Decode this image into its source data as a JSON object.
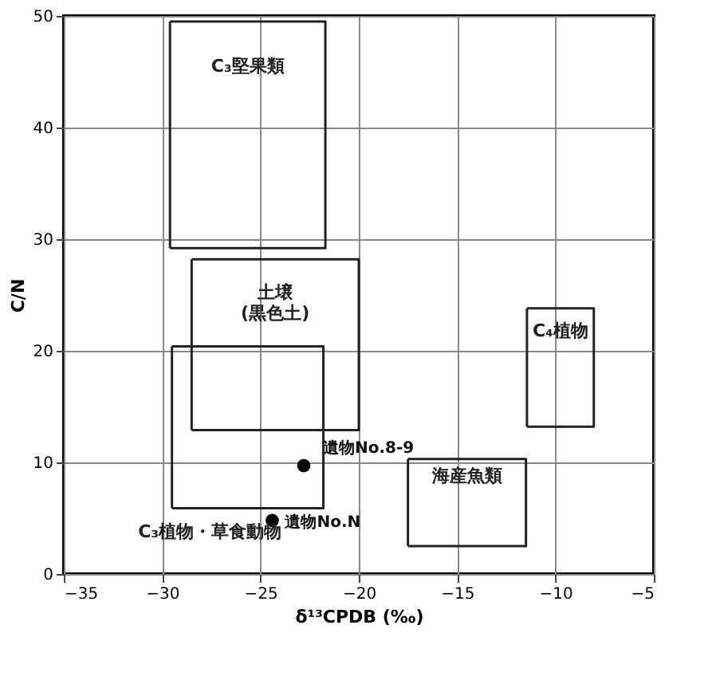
{
  "chart_data": {
    "type": "scatter",
    "xlabel": "δ¹³CPDB (‰)",
    "ylabel": "C/N",
    "xlim": [
      -35,
      -5
    ],
    "xticks": [
      -35,
      -30,
      -25,
      -20,
      -15,
      -10,
      -5
    ],
    "ylim": [
      0,
      50
    ],
    "yticks": [
      0,
      10,
      20,
      30,
      40,
      50
    ],
    "grid": true,
    "marker": "circle",
    "series": [
      {
        "color": "#000000",
        "x": [
          -22.8,
          -24.4
        ],
        "values": [
          9.7,
          4.8
        ]
      },
      {
        "type": "line",
        "name": "C₃堅果類",
        "marker": "none",
        "color": "#222222",
        "x": [
          -29.6,
          -21.7,
          -21.7,
          -29.6
        ],
        "values": [
          49.5,
          49.5,
          29.2,
          29.2
        ]
      },
      {
        "type": "line",
        "marker": "none",
        "color": "#222222",
        "x": [
          -29.6,
          -29.6
        ],
        "values": [
          29.2,
          49.5
        ]
      },
      {
        "type": "line",
        "name": "土壌\n(黒色土)",
        "marker": "none",
        "color": "#222222",
        "x": [
          -28.5,
          -20.0,
          -20.0,
          -28.5
        ],
        "values": [
          28.2,
          28.2,
          12.9,
          12.9
        ]
      },
      {
        "type": "line",
        "marker": "none",
        "color": "#222222",
        "x": [
          -28.5,
          -28.5
        ],
        "values": [
          12.9,
          28.2
        ]
      },
      {
        "type": "line",
        "name": "C₃植物・草食動物",
        "marker": "none",
        "color": "#222222",
        "x": [
          -29.5,
          -21.8,
          -21.8,
          -29.5
        ],
        "values": [
          20.4,
          20.4,
          5.9,
          5.9
        ]
      },
      {
        "type": "line",
        "marker": "none",
        "color": "#222222",
        "x": [
          -29.5,
          -29.5
        ],
        "values": [
          5.9,
          20.4
        ]
      },
      {
        "type": "line",
        "name": "C₄植物",
        "marker": "none",
        "color": "#222222",
        "x": [
          -11.45,
          -8.05,
          -8.05,
          -11.45
        ],
        "values": [
          23.8,
          23.8,
          13.2,
          13.2
        ]
      },
      {
        "type": "line",
        "marker": "none",
        "color": "#222222",
        "x": [
          -11.45,
          -11.45
        ],
        "values": [
          13.2,
          23.8
        ]
      },
      {
        "type": "line",
        "name": "海産魚類",
        "marker": "none",
        "color": "#222222",
        "x": [
          -17.5,
          -11.5,
          -11.5,
          -17.5
        ],
        "values": [
          10.3,
          10.3,
          2.5,
          2.5
        ]
      },
      {
        "type": "line",
        "marker": "none",
        "color": "#222222",
        "x": [
          -17.5,
          -17.5
        ],
        "values": [
          2.5,
          10.3
        ]
      }
    ],
    "annotations": [
      {
        "text": "遺物No.8-9",
        "x": -22.8,
        "y": 9.7
      },
      {
        "text": "遺物No.N",
        "x": -24.4,
        "y": 4.8
      }
    ]
  }
}
